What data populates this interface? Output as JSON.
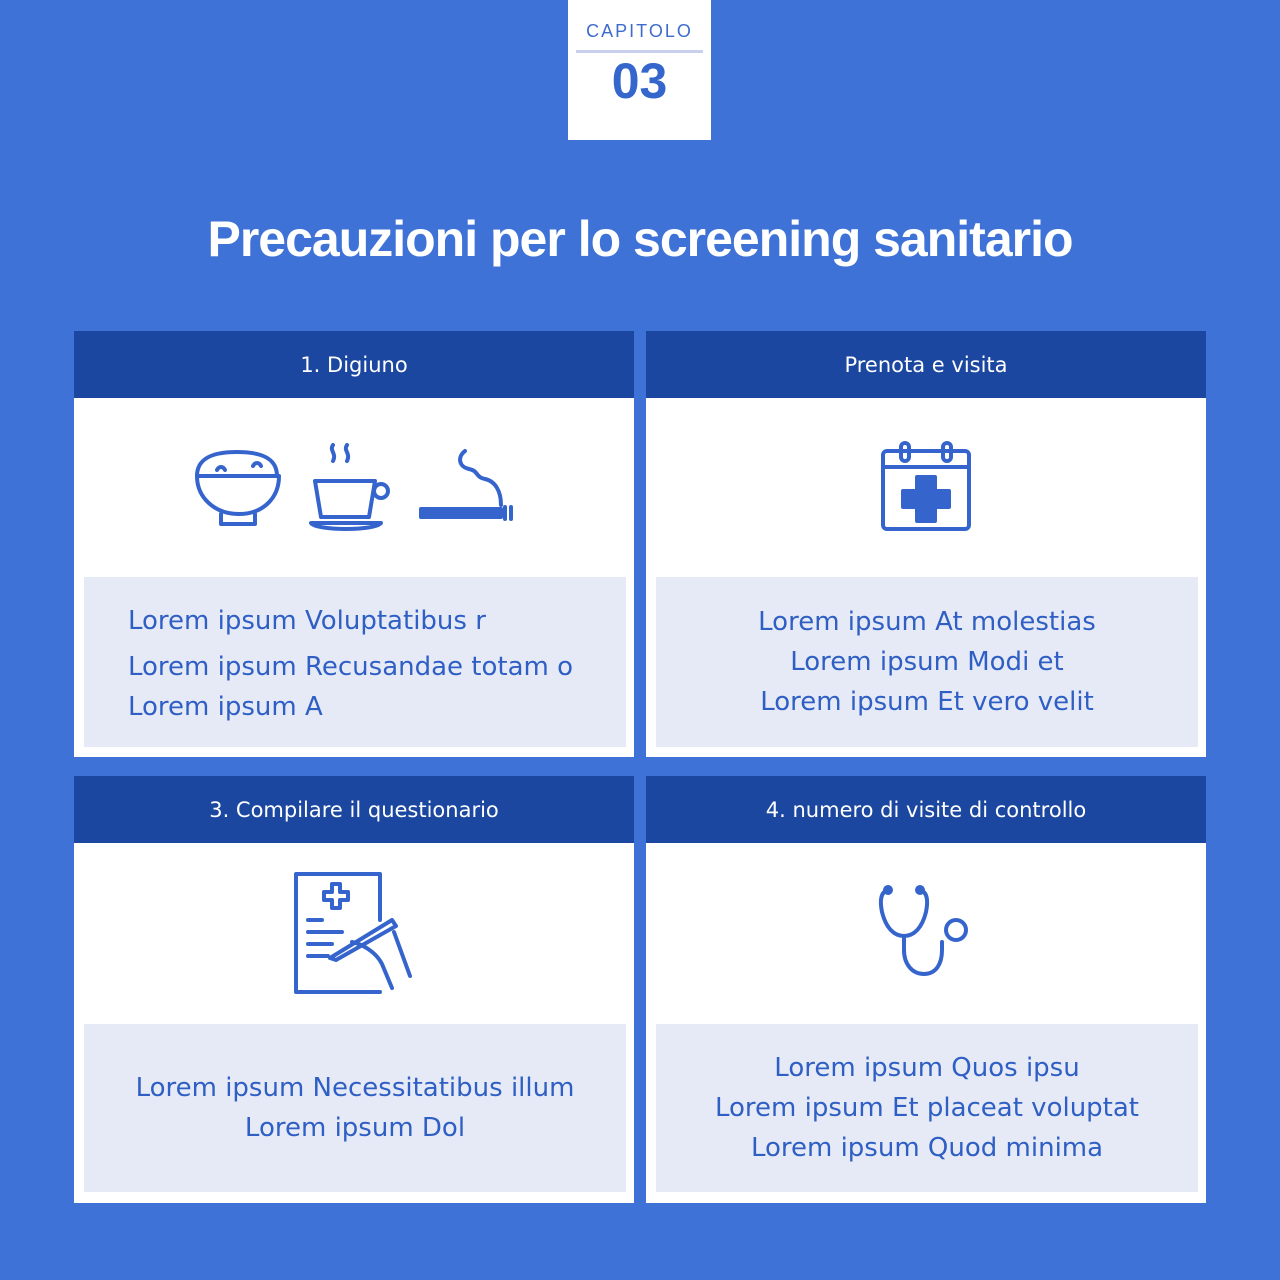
{
  "chapter": {
    "label": "CAPITOLO",
    "number": "03"
  },
  "title": "Precauzioni per lo screening sanitario",
  "cards": [
    {
      "header": "1. Digiuno",
      "lines": [
        "Lorem ipsum Voluptatibus r",
        "Lorem ipsum Recusandae totam o",
        "Lorem ipsum A"
      ],
      "icons": [
        "rice-bowl-icon",
        "coffee-cup-icon",
        "cigarette-icon"
      ]
    },
    {
      "header": "Prenota e visita",
      "lines": [
        "Lorem ipsum At molestias",
        "Lorem ipsum Modi et",
        "Lorem ipsum Et vero velit"
      ],
      "icons": [
        "medical-calendar-icon"
      ]
    },
    {
      "header": "3. Compilare il questionario",
      "lines": [
        "Lorem ipsum Necessitatibus illum",
        "Lorem ipsum Dol"
      ],
      "icons": [
        "medical-form-icon"
      ]
    },
    {
      "header": "4. numero di visite di controllo",
      "lines": [
        "Lorem ipsum Quos ipsu",
        "Lorem ipsum Et placeat voluptat",
        "Lorem ipsum Quod minima"
      ],
      "icons": [
        "stethoscope-icon"
      ]
    }
  ],
  "colors": {
    "background": "#3e72d6",
    "header": "#1b47a0",
    "accent": "#3565cc",
    "panel": "#e5eaf6"
  }
}
